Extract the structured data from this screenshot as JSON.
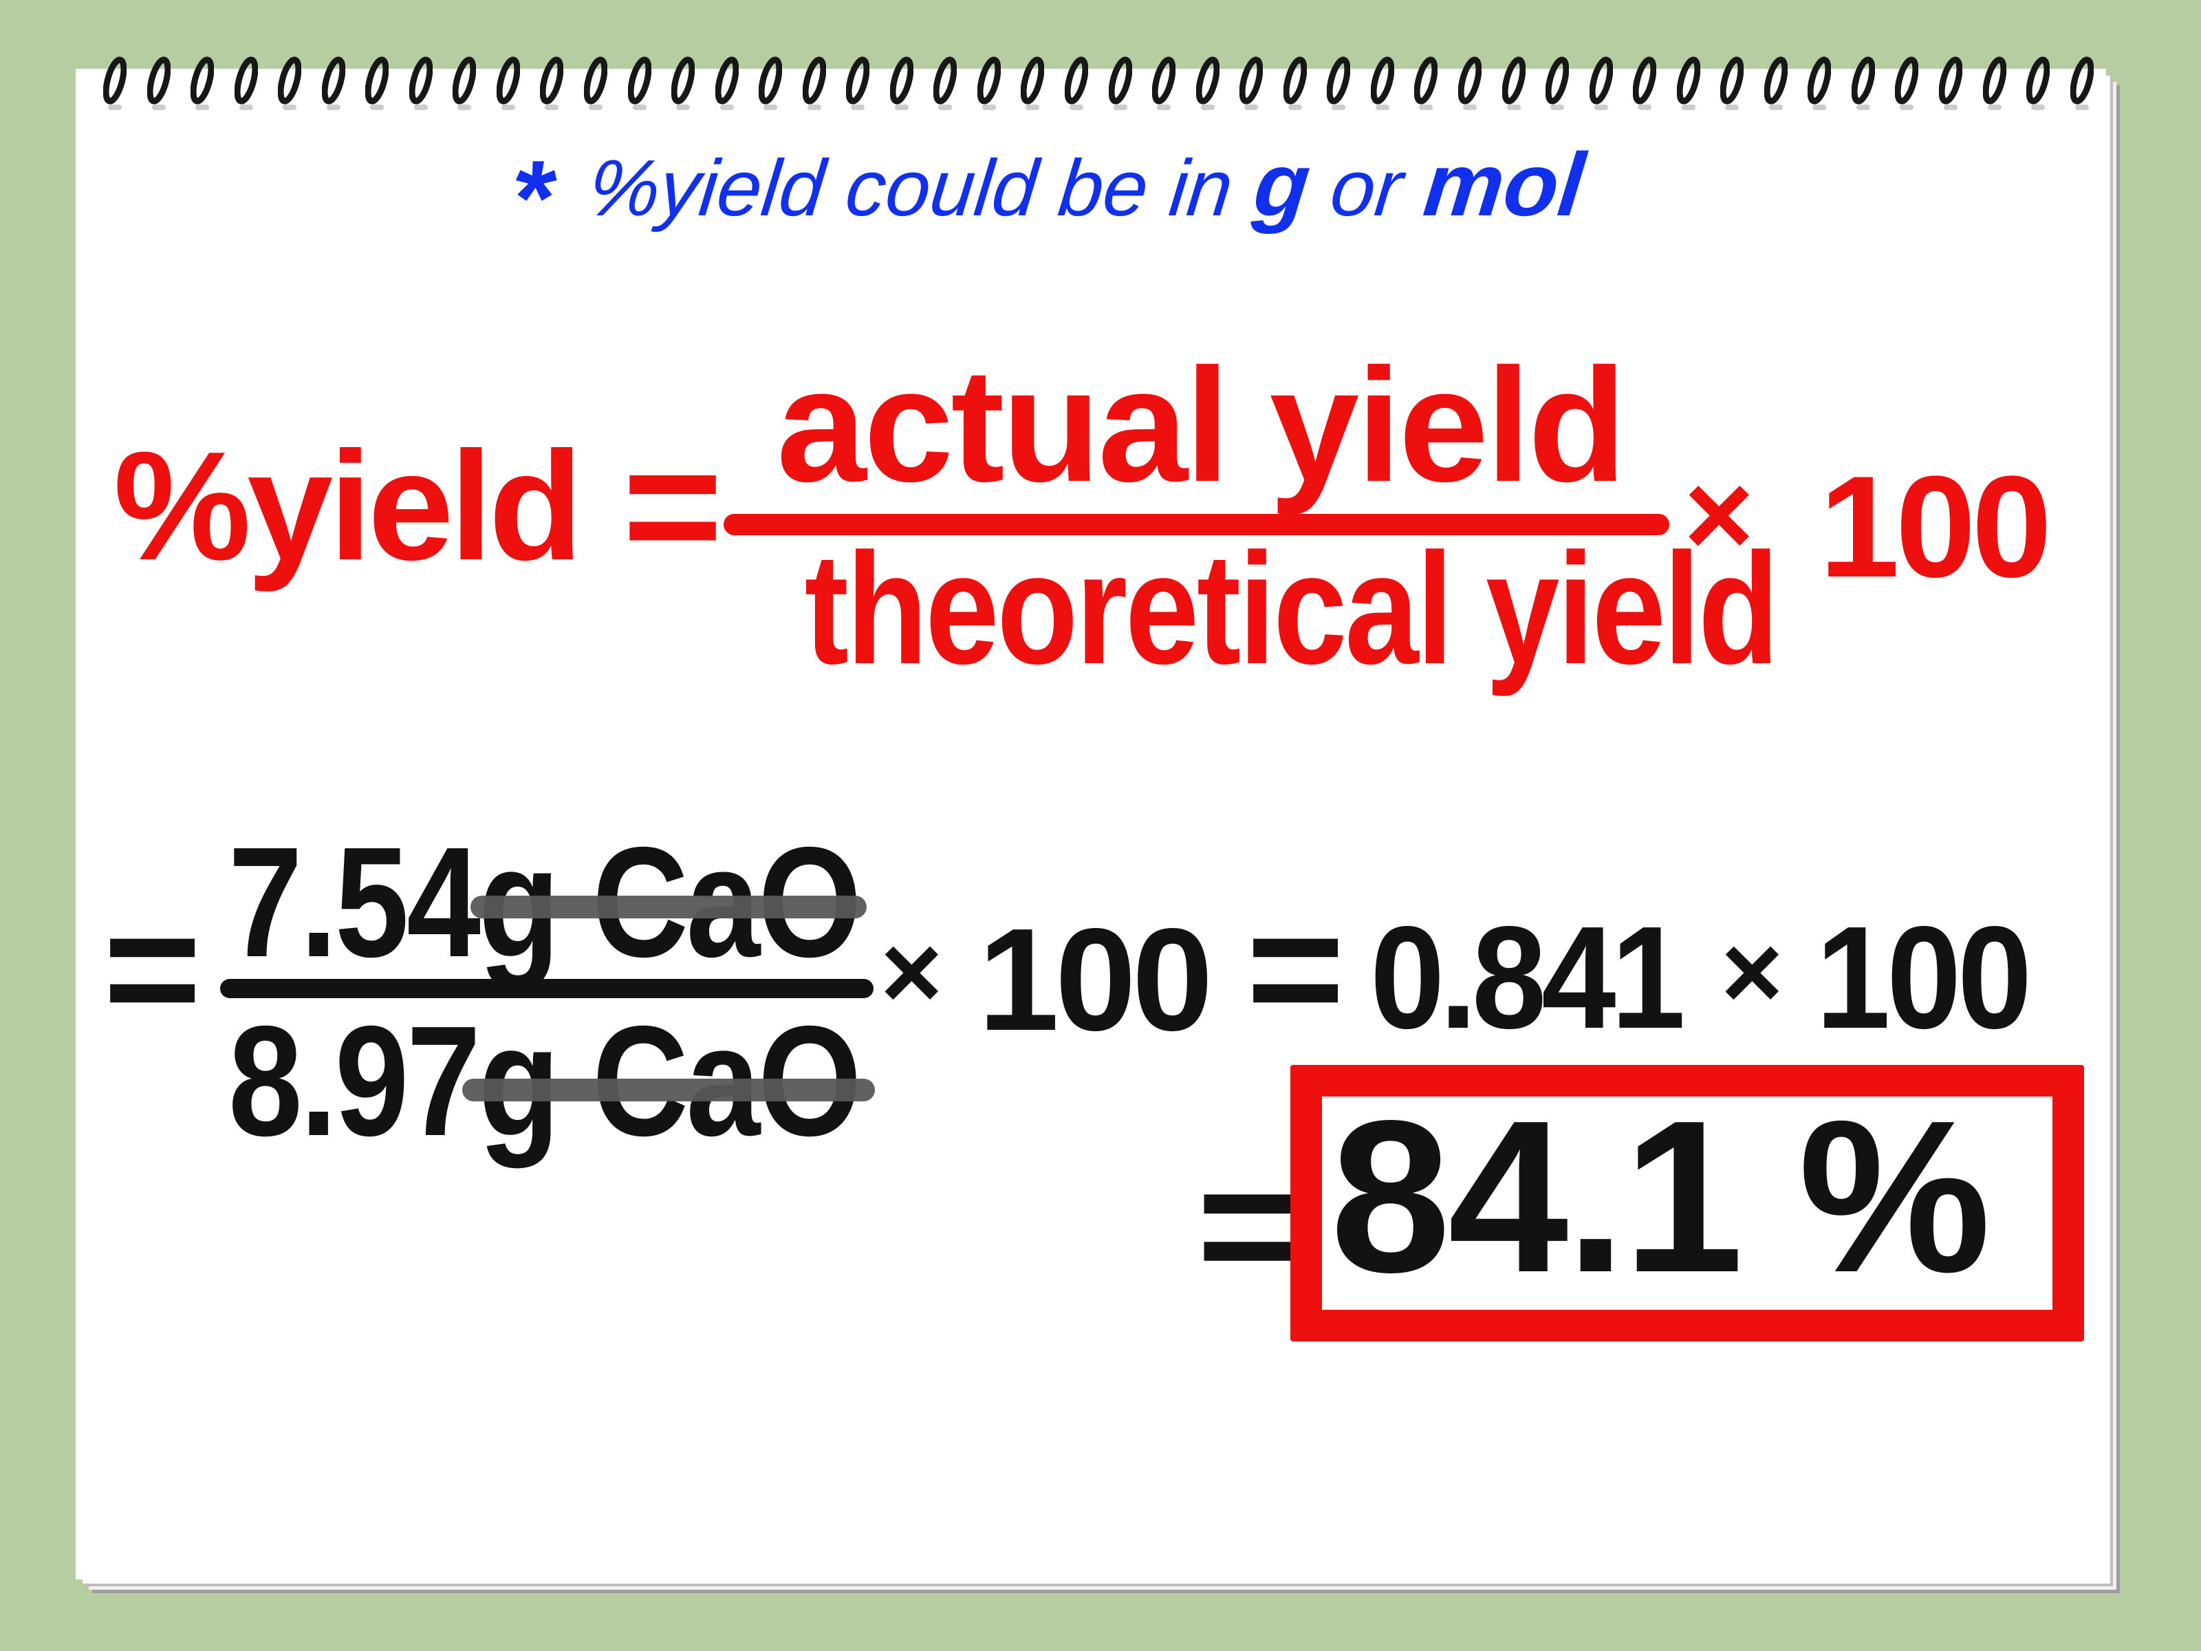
{
  "colors": {
    "background": "#b6cda2",
    "paper": "#ffffff",
    "accent_blue": "#1130ee",
    "accent_red": "#ee0f0f",
    "ink_black": "#121212",
    "strike_gray": "#58585a"
  },
  "notebook": {
    "spiral_count": 46
  },
  "annotation": {
    "asterisk": "*",
    "lead": "%yield could be in ",
    "unit_g": "g",
    "conjunction": " or ",
    "unit_mol": "mol"
  },
  "formula": {
    "lhs": "%yield",
    "equals": "=",
    "numerator": "actual yield",
    "denominator": "theoretical yield",
    "multiply": "×",
    "factor": "100"
  },
  "worked_step1": {
    "equals": "=",
    "numerator_value": "7.54",
    "numerator_unit": "g CaO",
    "denominator_value": "8.97",
    "denominator_unit": "g CaO",
    "multiply": "×",
    "factor": "100"
  },
  "worked_step2": {
    "equals": "=",
    "value": "0.841",
    "multiply": "×",
    "factor": "100"
  },
  "result": {
    "equals": "=",
    "value": "84.1 %"
  }
}
